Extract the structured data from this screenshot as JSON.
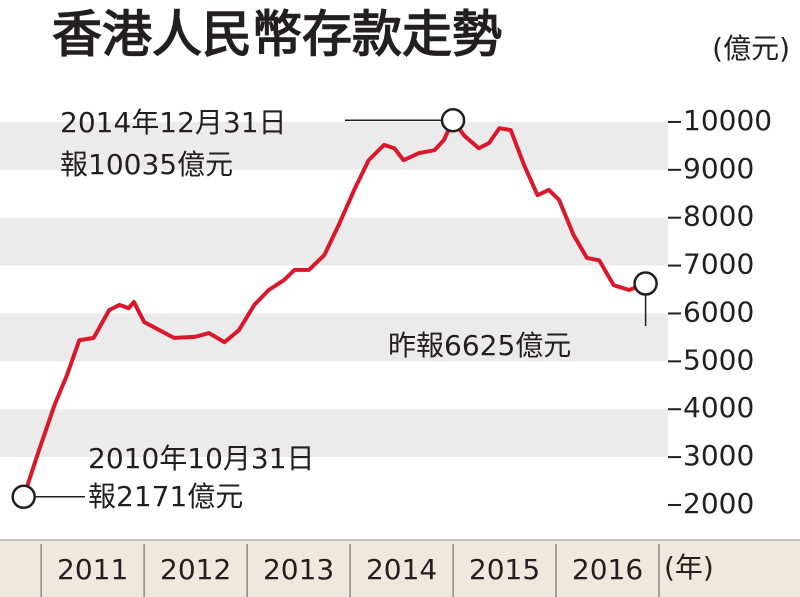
{
  "chart_data": {
    "type": "line",
    "title": "香港人民幣存款走勢",
    "y_unit": "(億元)",
    "x_unit": "(年)",
    "color": "#d9182b",
    "grid": true,
    "x": [
      2010.83,
      2010.98,
      2011.13,
      2011.25,
      2011.37,
      2011.51,
      2011.66,
      2011.76,
      2011.85,
      2011.9,
      2012.0,
      2012.15,
      2012.29,
      2012.49,
      2012.63,
      2012.78,
      2012.92,
      2013.07,
      2013.21,
      2013.36,
      2013.46,
      2013.6,
      2013.75,
      2013.89,
      2014.04,
      2014.18,
      2014.33,
      2014.43,
      2014.52,
      2014.67,
      2014.82,
      2014.91,
      2015.0,
      2015.11,
      2015.25,
      2015.35,
      2015.45,
      2015.56,
      2015.69,
      2015.82,
      2015.93,
      2016.03,
      2016.17,
      2016.3,
      2016.42,
      2016.56,
      2016.71,
      2016.87
    ],
    "values": [
      2171,
      3150,
      4090,
      4710,
      5440,
      5490,
      6070,
      6180,
      6110,
      6240,
      5820,
      5650,
      5490,
      5510,
      5590,
      5400,
      5650,
      6180,
      6490,
      6700,
      6910,
      6910,
      7220,
      7850,
      8580,
      9200,
      9520,
      9450,
      9200,
      9350,
      9410,
      9620,
      10035,
      9710,
      9450,
      9560,
      9870,
      9830,
      9100,
      8470,
      8580,
      8370,
      7640,
      7160,
      7110,
      6590,
      6490,
      6625
    ],
    "xlim": [
      2010.6,
      2017
    ],
    "xticks": [
      2011,
      2012,
      2013,
      2014,
      2015,
      2016
    ],
    "ylim": [
      1300,
      10500
    ],
    "yticks": [
      2000,
      3000,
      4000,
      5000,
      6000,
      7000,
      8000,
      9000,
      10000
    ],
    "annotations": [
      {
        "text": "2014年12月31日"
      },
      {
        "text": "報10035億元"
      },
      {
        "text": "2010年10月31日"
      },
      {
        "text": "報2171億元"
      },
      {
        "text": "昨報6625億元"
      }
    ]
  }
}
